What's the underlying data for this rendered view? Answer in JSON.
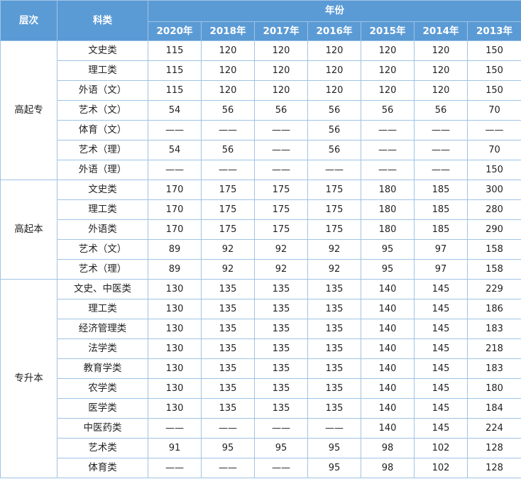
{
  "header": {
    "level": "层次",
    "category": "科类",
    "year_group": "年份",
    "years": [
      "2020年",
      "2018年",
      "2017年",
      "2016年",
      "2015年",
      "2014年",
      "2013年"
    ]
  },
  "groups": [
    {
      "name": "高起专",
      "rows": [
        {
          "category": "文史类",
          "values": [
            "115",
            "120",
            "120",
            "120",
            "120",
            "120",
            "150"
          ]
        },
        {
          "category": "理工类",
          "values": [
            "115",
            "120",
            "120",
            "120",
            "120",
            "120",
            "150"
          ]
        },
        {
          "category": "外语（文）",
          "values": [
            "115",
            "120",
            "120",
            "120",
            "120",
            "120",
            "150"
          ]
        },
        {
          "category": "艺术（文）",
          "values": [
            "54",
            "56",
            "56",
            "56",
            "56",
            "56",
            "70"
          ]
        },
        {
          "category": "体育（文）",
          "values": [
            "——",
            "——",
            "——",
            "56",
            "——",
            "——",
            "——"
          ]
        },
        {
          "category": "艺术（理）",
          "values": [
            "54",
            "56",
            "——",
            "56",
            "——",
            "——",
            "70"
          ]
        },
        {
          "category": "外语（理）",
          "values": [
            "——",
            "——",
            "——",
            "——",
            "——",
            "——",
            "150"
          ]
        }
      ]
    },
    {
      "name": "高起本",
      "rows": [
        {
          "category": "文史类",
          "values": [
            "170",
            "175",
            "175",
            "175",
            "180",
            "185",
            "300"
          ]
        },
        {
          "category": "理工类",
          "values": [
            "170",
            "175",
            "175",
            "175",
            "180",
            "185",
            "280"
          ]
        },
        {
          "category": "外语类",
          "values": [
            "170",
            "175",
            "175",
            "175",
            "180",
            "185",
            "290"
          ]
        },
        {
          "category": "艺术（文）",
          "values": [
            "89",
            "92",
            "92",
            "92",
            "95",
            "97",
            "158"
          ]
        },
        {
          "category": "艺术（理）",
          "values": [
            "89",
            "92",
            "92",
            "92",
            "95",
            "97",
            "158"
          ]
        }
      ]
    },
    {
      "name": "专升本",
      "rows": [
        {
          "category": "文史、中医类",
          "values": [
            "130",
            "135",
            "135",
            "135",
            "140",
            "145",
            "229"
          ]
        },
        {
          "category": "理工类",
          "values": [
            "130",
            "135",
            "135",
            "135",
            "140",
            "145",
            "186"
          ]
        },
        {
          "category": "经济管理类",
          "values": [
            "130",
            "135",
            "135",
            "135",
            "140",
            "145",
            "183"
          ]
        },
        {
          "category": "法学类",
          "values": [
            "130",
            "135",
            "135",
            "135",
            "140",
            "145",
            "218"
          ]
        },
        {
          "category": "教育学类",
          "values": [
            "130",
            "135",
            "135",
            "135",
            "140",
            "145",
            "183"
          ]
        },
        {
          "category": "农学类",
          "values": [
            "130",
            "135",
            "135",
            "135",
            "140",
            "145",
            "180"
          ]
        },
        {
          "category": "医学类",
          "values": [
            "130",
            "135",
            "135",
            "135",
            "140",
            "145",
            "184"
          ]
        },
        {
          "category": "中医药类",
          "values": [
            "——",
            "——",
            "——",
            "——",
            "140",
            "145",
            "224"
          ]
        },
        {
          "category": "艺术类",
          "values": [
            "91",
            "95",
            "95",
            "95",
            "98",
            "102",
            "128"
          ]
        },
        {
          "category": "体育类",
          "values": [
            "——",
            "——",
            "——",
            "95",
            "98",
            "102",
            "128"
          ]
        }
      ]
    }
  ]
}
